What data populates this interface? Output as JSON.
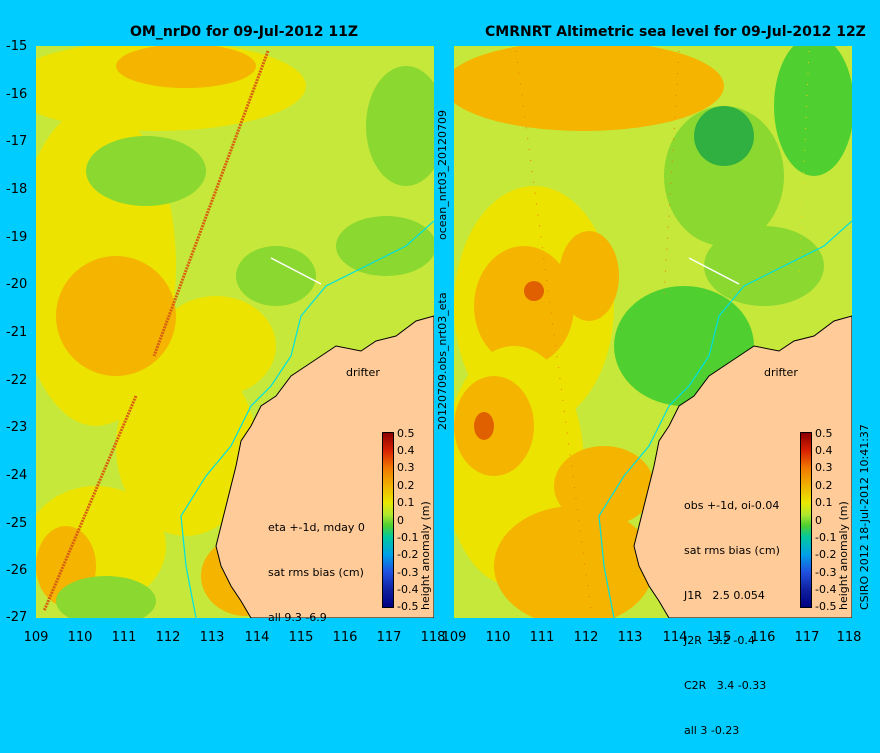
{
  "panels": [
    {
      "title": "OM_nrD0 for 09-Jul-2012 11Z",
      "notes": [
        "eta +-1d, mday 0",
        "sat rms bias (cm)",
        "all 9.3 -6.9"
      ]
    },
    {
      "title": "CMRNRT Altimetric sea level  for 09-Jul-2012 12Z",
      "notes": [
        "obs +-1d, oi-0.04",
        "sat rms bias (cm)",
        "J1R   2.5 0.054",
        "J2R   3.2 -0.4",
        "C2R   3.4 -0.33",
        "all 3 -0.23"
      ]
    }
  ],
  "y_ticks": [
    "-15",
    "-16",
    "-17",
    "-18",
    "-19",
    "-20",
    "-21",
    "-22",
    "-23",
    "-24",
    "-25",
    "-26",
    "-27"
  ],
  "x_ticks_left": [
    "109",
    "110",
    "111",
    "112",
    "113",
    "114",
    "115",
    "116",
    "117",
    "118"
  ],
  "x_ticks_right": [
    "109",
    "110",
    "111",
    "112",
    "113",
    "114",
    "115",
    "116",
    "117",
    "118"
  ],
  "side_labels": {
    "top": "ocean_nrt03_20120709",
    "bottom": "20120709.obs_nrt03_eta"
  },
  "drifter_label": "drifter",
  "colorbar": {
    "ticks": [
      "0.5",
      "0.4",
      "0.3",
      "0.2",
      "0.1",
      "0",
      "-0.1",
      "-0.2",
      "-0.3",
      "-0.4",
      "-0.5"
    ],
    "label": "height anomaly (m)"
  },
  "copyright": "CSIRO 2012  18-Jul-2012 10:41:37",
  "colors": {
    "background": "#00ccff",
    "land": "#ffcc99",
    "vectors": "#ff00ff"
  }
}
